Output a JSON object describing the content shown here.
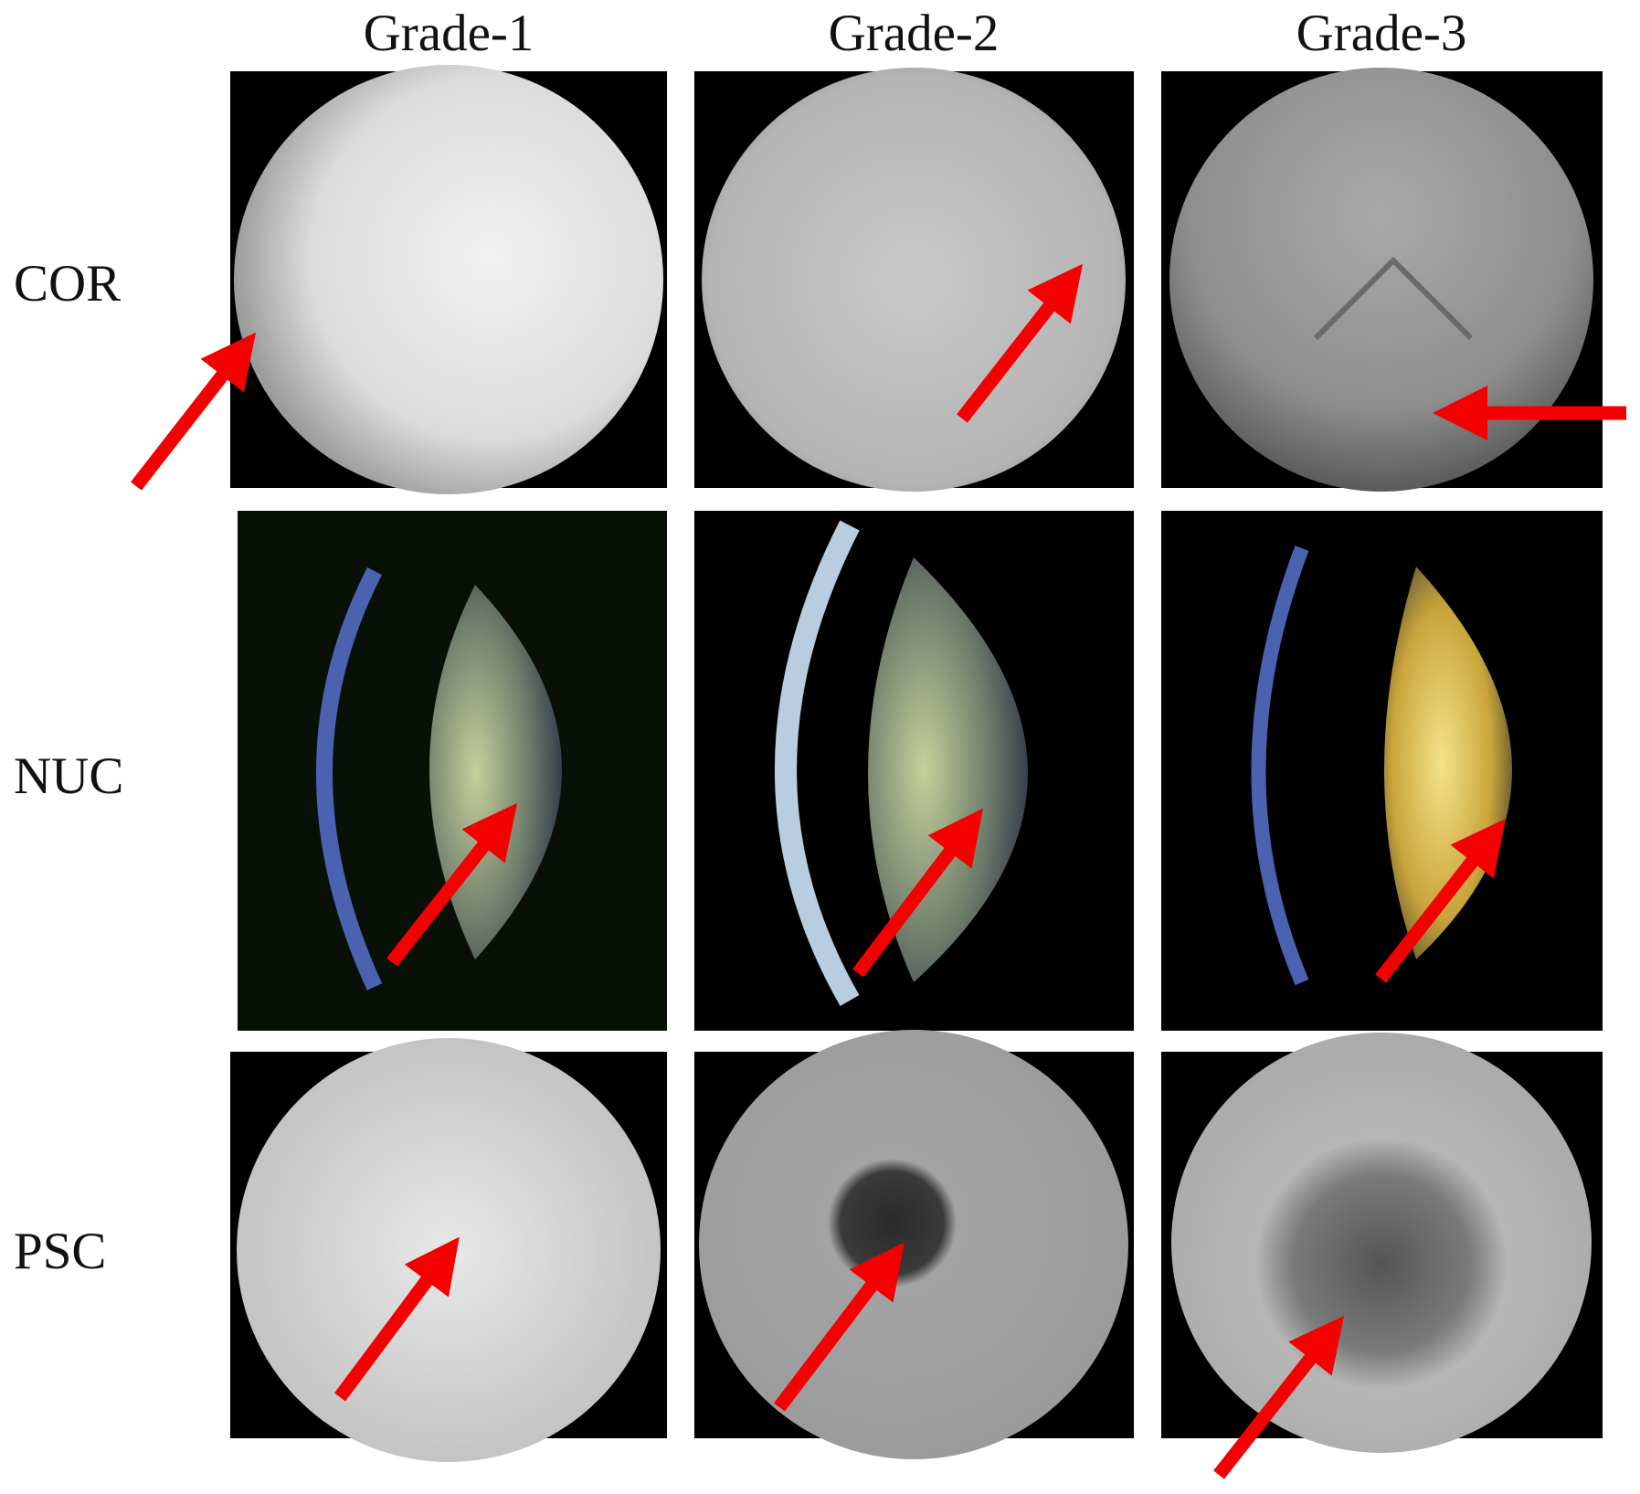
{
  "columns": [
    "Grade-1",
    "Grade-2",
    "Grade-3"
  ],
  "rows": [
    "COR",
    "NUC",
    "PSC"
  ]
}
